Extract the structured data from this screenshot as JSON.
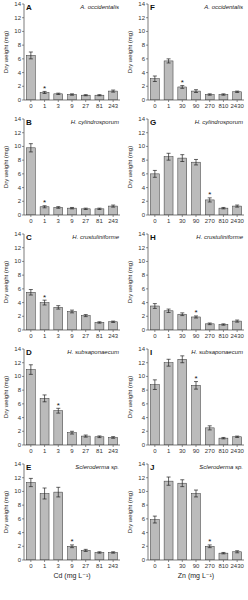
{
  "chart_data": [
    {
      "type": "bar",
      "title": "A",
      "subtitle": "A. occidentalis",
      "y_label": "Dry weight (mg)",
      "categories": [
        "0",
        "1",
        "3",
        "9",
        "27",
        "81",
        "243"
      ],
      "values": [
        6.5,
        1.1,
        0.9,
        0.8,
        0.7,
        0.7,
        1.3
      ],
      "errors": [
        0.5,
        0.15,
        0.1,
        0.1,
        0.08,
        0.08,
        0.15
      ],
      "annotations": [
        {
          "text": "*",
          "category": "1"
        }
      ],
      "color": "#bbbbbb",
      "ylim": [
        0,
        14
      ],
      "yticks": [
        0,
        2,
        4,
        6,
        8,
        10,
        12,
        14
      ],
      "grid": false
    },
    {
      "type": "bar",
      "title": "B",
      "subtitle": "H. cylindrosporum",
      "y_label": "Dry weight (mg)",
      "categories": [
        "0",
        "1",
        "3",
        "9",
        "27",
        "81",
        "243"
      ],
      "values": [
        9.8,
        1.2,
        1.1,
        1.0,
        0.9,
        0.9,
        1.3
      ],
      "errors": [
        0.6,
        0.15,
        0.12,
        0.1,
        0.1,
        0.1,
        0.15
      ],
      "annotations": [
        {
          "text": "*",
          "category": "1"
        }
      ],
      "color": "#bbbbbb",
      "ylim": [
        0,
        14
      ],
      "yticks": [
        0,
        2,
        4,
        6,
        8,
        10,
        12,
        14
      ],
      "grid": false
    },
    {
      "type": "bar",
      "title": "C",
      "subtitle": "H. crustuliniforme",
      "y_label": "Dry weight (mg)",
      "categories": [
        "0",
        "1",
        "3",
        "9",
        "27",
        "81",
        "243"
      ],
      "values": [
        5.5,
        4.0,
        3.3,
        2.7,
        2.1,
        1.1,
        1.2
      ],
      "errors": [
        0.4,
        0.35,
        0.25,
        0.2,
        0.15,
        0.1,
        0.1
      ],
      "annotations": [
        {
          "text": "*",
          "category": "1"
        }
      ],
      "color": "#bbbbbb",
      "ylim": [
        0,
        14
      ],
      "yticks": [
        0,
        2,
        4,
        6,
        8,
        10,
        12,
        14
      ],
      "grid": false
    },
    {
      "type": "bar",
      "title": "D",
      "subtitle": "H. subsaponaecum",
      "y_label": "Dry weight (mg)",
      "categories": [
        "0",
        "1",
        "3",
        "9",
        "27",
        "81",
        "243"
      ],
      "values": [
        11.0,
        6.8,
        5.0,
        1.8,
        1.3,
        1.2,
        1.1
      ],
      "errors": [
        0.7,
        0.5,
        0.35,
        0.2,
        0.15,
        0.12,
        0.12
      ],
      "annotations": [
        {
          "text": "*",
          "category": "3"
        }
      ],
      "color": "#bbbbbb",
      "ylim": [
        0,
        14
      ],
      "yticks": [
        0,
        2,
        4,
        6,
        8,
        10,
        12,
        14
      ],
      "grid": false
    },
    {
      "type": "bar",
      "title": "E",
      "subtitle": "Scleroderma sp.",
      "y_label": "Dry weight (mg)",
      "x_label": "Cd (mg L⁻¹)",
      "categories": [
        "0",
        "1",
        "3",
        "9",
        "27",
        "81",
        "243"
      ],
      "values": [
        11.3,
        9.7,
        9.9,
        2.0,
        1.4,
        1.1,
        1.1
      ],
      "errors": [
        0.6,
        0.8,
        0.7,
        0.2,
        0.15,
        0.1,
        0.1
      ],
      "annotations": [
        {
          "text": "*",
          "category": "9"
        }
      ],
      "color": "#bbbbbb",
      "ylim": [
        0,
        14
      ],
      "yticks": [
        0,
        2,
        4,
        6,
        8,
        10,
        12,
        14
      ],
      "grid": false
    },
    {
      "type": "bar",
      "title": "F",
      "subtitle": "A. occidentalis",
      "y_label": "Dry weight (mg)",
      "categories": [
        "0",
        "1",
        "30",
        "90",
        "270",
        "810",
        "2430"
      ],
      "values": [
        3.1,
        5.7,
        1.9,
        1.3,
        0.8,
        0.8,
        1.2
      ],
      "errors": [
        0.4,
        0.3,
        0.2,
        0.2,
        0.1,
        0.1,
        0.1
      ],
      "annotations": [
        {
          "text": "*",
          "category": "30"
        }
      ],
      "color": "#bbbbbb",
      "ylim": [
        0,
        14
      ],
      "yticks": [
        0,
        2,
        4,
        6,
        8,
        10,
        12,
        14
      ],
      "grid": false
    },
    {
      "type": "bar",
      "title": "G",
      "subtitle": "H. cylindrosporum",
      "y_label": "Dry weight (mg)",
      "categories": [
        "0",
        "1",
        "30",
        "90",
        "270",
        "810",
        "2430"
      ],
      "values": [
        6.0,
        8.5,
        8.3,
        7.7,
        2.2,
        1.0,
        1.3
      ],
      "errors": [
        0.5,
        0.5,
        0.5,
        0.4,
        0.3,
        0.1,
        0.15
      ],
      "annotations": [
        {
          "text": "*",
          "category": "270"
        }
      ],
      "color": "#bbbbbb",
      "ylim": [
        0,
        14
      ],
      "yticks": [
        0,
        2,
        4,
        6,
        8,
        10,
        12,
        14
      ],
      "grid": false
    },
    {
      "type": "bar",
      "title": "H",
      "subtitle": "H. crustuliniforme",
      "y_label": "Dry weight (mg)",
      "categories": [
        "0",
        "1",
        "30",
        "90",
        "270",
        "810",
        "2430"
      ],
      "values": [
        3.5,
        2.8,
        2.3,
        1.9,
        0.9,
        0.8,
        1.3
      ],
      "errors": [
        0.35,
        0.25,
        0.2,
        0.15,
        0.12,
        0.1,
        0.15
      ],
      "annotations": [
        {
          "text": "*",
          "category": "90"
        }
      ],
      "color": "#bbbbbb",
      "ylim": [
        0,
        14
      ],
      "yticks": [
        0,
        2,
        4,
        6,
        8,
        10,
        12,
        14
      ],
      "grid": false
    },
    {
      "type": "bar",
      "title": "I",
      "subtitle": "H. subsaponaecum",
      "y_label": "Dry weight (mg)",
      "categories": [
        "0",
        "1",
        "30",
        "90",
        "270",
        "810",
        "2430"
      ],
      "values": [
        8.8,
        12.0,
        12.5,
        8.7,
        2.5,
        1.0,
        1.2
      ],
      "errors": [
        0.7,
        0.5,
        0.5,
        0.55,
        0.3,
        0.1,
        0.1
      ],
      "annotations": [
        {
          "text": "*",
          "category": "90"
        }
      ],
      "color": "#bbbbbb",
      "ylim": [
        0,
        14
      ],
      "yticks": [
        0,
        2,
        4,
        6,
        8,
        10,
        12,
        14
      ],
      "grid": false
    },
    {
      "type": "bar",
      "title": "J",
      "subtitle": "Scleroderma sp.",
      "y_label": "Dry weight (mg)",
      "x_label": "Zn (mg L⁻¹)",
      "categories": [
        "0",
        "1",
        "30",
        "90",
        "270",
        "810",
        "2430"
      ],
      "values": [
        5.9,
        11.5,
        11.2,
        9.7,
        2.0,
        1.0,
        1.2
      ],
      "errors": [
        0.5,
        0.6,
        0.5,
        0.5,
        0.2,
        0.1,
        0.15
      ],
      "annotations": [
        {
          "text": "*",
          "category": "270"
        }
      ],
      "color": "#bbbbbb",
      "ylim": [
        0,
        14
      ],
      "yticks": [
        0,
        2,
        4,
        6,
        8,
        10,
        12,
        14
      ],
      "grid": false
    }
  ]
}
